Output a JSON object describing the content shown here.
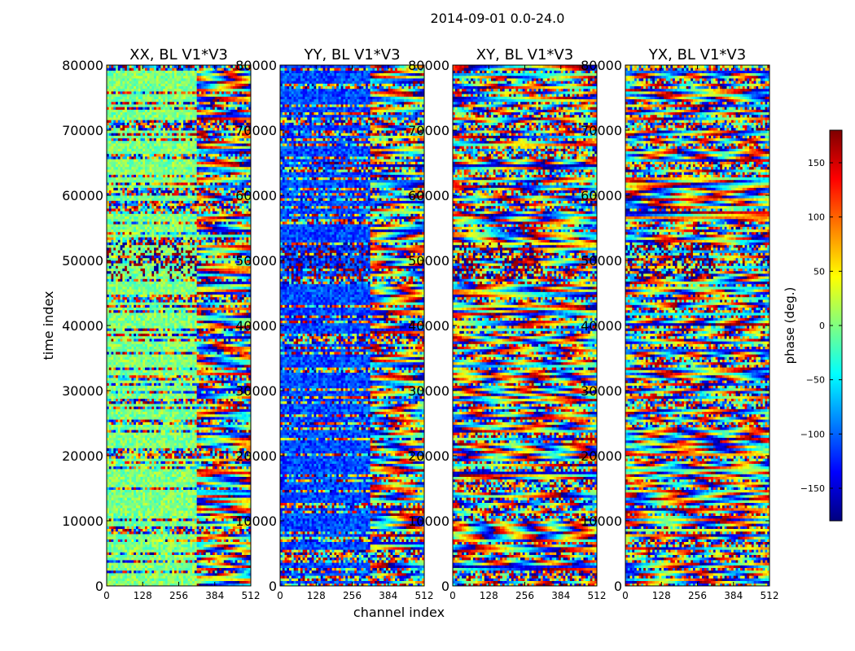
{
  "figure_title": "2014-09-01 0.0-24.0",
  "xlabel": "channel index",
  "ylabel": "time index",
  "colorbar": {
    "label": "phase (deg.)",
    "range": [
      -180,
      180
    ],
    "ticks": [
      150,
      100,
      50,
      0,
      -50,
      -100,
      -150
    ],
    "tick_labels": [
      "150",
      "100",
      "50",
      "0",
      "−50",
      "−100",
      "−150"
    ],
    "colormap": "jet",
    "colors": [
      "#00007f",
      "#0000ff",
      "#0080ff",
      "#00ffff",
      "#80ff80",
      "#ffff00",
      "#ff8000",
      "#ff0000",
      "#7f0000"
    ]
  },
  "chart_data": [
    {
      "type": "heatmap",
      "title": "XX, BL V1*V3",
      "xlim": [
        0,
        512
      ],
      "ylim": [
        0,
        80000
      ],
      "xticks": [
        0,
        128,
        256,
        384,
        512
      ],
      "xtick_labels": [
        "0",
        "128",
        "256",
        "384",
        "512"
      ],
      "yticks": [
        0,
        10000,
        20000,
        30000,
        40000,
        50000,
        60000,
        70000,
        80000
      ],
      "ytick_labels": [
        "0",
        "10000",
        "20000",
        "30000",
        "40000",
        "50000",
        "60000",
        "70000",
        "80000"
      ],
      "value": "phase (deg.)",
      "features": {
        "flat_left_half": true,
        "bias": 0,
        "dark_band_time": [
          47000,
          53000
        ]
      }
    },
    {
      "type": "heatmap",
      "title": "YY, BL V1*V3",
      "xlim": [
        0,
        512
      ],
      "ylim": [
        0,
        80000
      ],
      "xticks": [
        0,
        128,
        256,
        384,
        512
      ],
      "xtick_labels": [
        "0",
        "128",
        "256",
        "384",
        "512"
      ],
      "yticks": [
        0,
        10000,
        20000,
        30000,
        40000,
        50000,
        60000,
        70000,
        80000
      ],
      "ytick_labels": [
        "0",
        "10000",
        "20000",
        "30000",
        "40000",
        "50000",
        "60000",
        "70000",
        "80000"
      ],
      "value": "phase (deg.)",
      "features": {
        "flat_left_half": true,
        "bias": -110,
        "dark_band_time": [
          47000,
          53000
        ]
      }
    },
    {
      "type": "heatmap",
      "title": "XY, BL V1*V3",
      "xlim": [
        0,
        512
      ],
      "ylim": [
        0,
        80000
      ],
      "xticks": [
        0,
        128,
        256,
        384,
        512
      ],
      "xtick_labels": [
        "0",
        "128",
        "256",
        "384",
        "512"
      ],
      "yticks": [
        0,
        10000,
        20000,
        30000,
        40000,
        50000,
        60000,
        70000,
        80000
      ],
      "ytick_labels": [
        "0",
        "10000",
        "20000",
        "30000",
        "40000",
        "50000",
        "60000",
        "70000",
        "80000"
      ],
      "value": "phase (deg.)",
      "features": {
        "flat_left_half": false,
        "bias": 0,
        "dark_band_time": [
          47000,
          53000
        ]
      }
    },
    {
      "type": "heatmap",
      "title": "YX, BL V1*V3",
      "xlim": [
        0,
        512
      ],
      "ylim": [
        0,
        80000
      ],
      "xticks": [
        0,
        128,
        256,
        384,
        512
      ],
      "xtick_labels": [
        "0",
        "128",
        "256",
        "384",
        "512"
      ],
      "yticks": [
        0,
        10000,
        20000,
        30000,
        40000,
        50000,
        60000,
        70000,
        80000
      ],
      "ytick_labels": [
        "0",
        "10000",
        "20000",
        "30000",
        "40000",
        "50000",
        "60000",
        "70000",
        "80000"
      ],
      "value": "phase (deg.)",
      "features": {
        "flat_left_half": false,
        "bias": 0,
        "dark_band_time": [
          47000,
          53000
        ]
      }
    }
  ]
}
